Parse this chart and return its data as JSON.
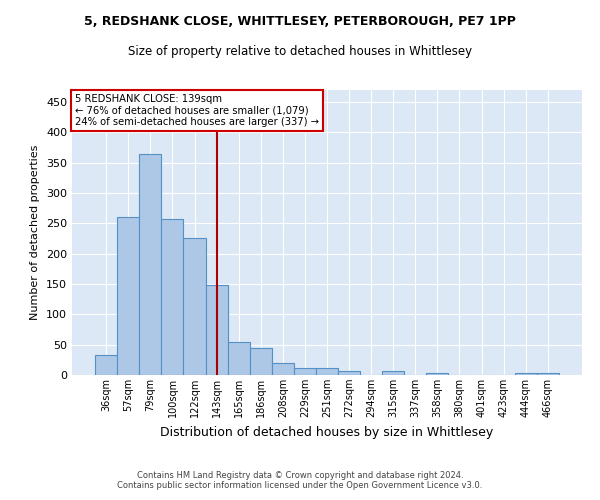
{
  "title_line1": "5, REDSHANK CLOSE, WHITTLESEY, PETERBOROUGH, PE7 1PP",
  "title_line2": "Size of property relative to detached houses in Whittlesey",
  "xlabel": "Distribution of detached houses by size in Whittlesey",
  "ylabel": "Number of detached properties",
  "categories": [
    "36sqm",
    "57sqm",
    "79sqm",
    "100sqm",
    "122sqm",
    "143sqm",
    "165sqm",
    "186sqm",
    "208sqm",
    "229sqm",
    "251sqm",
    "272sqm",
    "294sqm",
    "315sqm",
    "337sqm",
    "358sqm",
    "380sqm",
    "401sqm",
    "423sqm",
    "444sqm",
    "466sqm"
  ],
  "values": [
    33,
    260,
    364,
    257,
    226,
    148,
    55,
    44,
    19,
    11,
    11,
    7,
    0,
    6,
    0,
    4,
    0,
    0,
    0,
    3,
    3
  ],
  "bar_color": "#adc8e6",
  "bar_edge_color": "#5590c4",
  "background_color": "#dce8f5",
  "grid_color": "#ffffff",
  "annotation_text_line1": "5 REDSHANK CLOSE: 139sqm",
  "annotation_text_line2": "← 76% of detached houses are smaller (1,079)",
  "annotation_text_line3": "24% of semi-detached houses are larger (337) →",
  "annotation_box_color": "#ffffff",
  "annotation_border_color": "#cc0000",
  "red_line_color": "#aa0000",
  "ylim": [
    0,
    470
  ],
  "yticks": [
    0,
    50,
    100,
    150,
    200,
    250,
    300,
    350,
    400,
    450
  ],
  "footer_line1": "Contains HM Land Registry data © Crown copyright and database right 2024.",
  "footer_line2": "Contains public sector information licensed under the Open Government Licence v3.0.",
  "fig_bg": "#ffffff"
}
